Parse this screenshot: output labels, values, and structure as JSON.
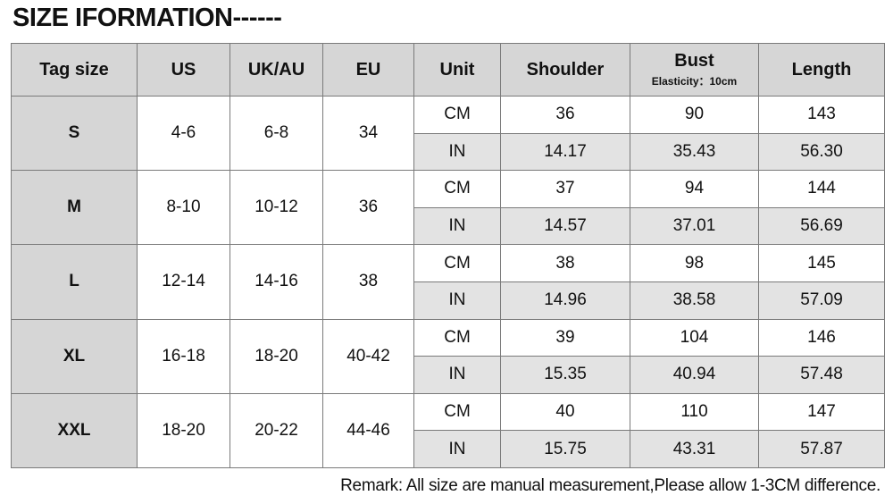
{
  "title": "SIZE IFORMATION------",
  "table": {
    "header": [
      "Tag size",
      "US",
      "UK/AU",
      "EU",
      "Unit",
      "Shoulder",
      "Bust",
      "Length"
    ],
    "header_note": "Elasticity：10cm",
    "rows": [
      {
        "tag": "S",
        "us": "4-6",
        "uk": "6-8",
        "eu": "34",
        "measurements": [
          [
            "CM",
            "36",
            "90",
            "143"
          ],
          [
            "IN",
            "14.17",
            "35.43",
            "56.30"
          ]
        ]
      },
      {
        "tag": "M",
        "us": "8-10",
        "uk": "10-12",
        "eu": "36",
        "measurements": [
          [
            "CM",
            "37",
            "94",
            "144"
          ],
          [
            "IN",
            "14.57",
            "37.01",
            "56.69"
          ]
        ]
      },
      {
        "tag": "L",
        "us": "12-14",
        "uk": "14-16",
        "eu": "38",
        "measurements": [
          [
            "CM",
            "38",
            "98",
            "145"
          ],
          [
            "IN",
            "14.96",
            "38.58",
            "57.09"
          ]
        ]
      },
      {
        "tag": "XL",
        "us": "16-18",
        "uk": "18-20",
        "eu": "40-42",
        "measurements": [
          [
            "CM",
            "39",
            "104",
            "146"
          ],
          [
            "IN",
            "15.35",
            "40.94",
            "57.48"
          ]
        ]
      },
      {
        "tag": "XXL",
        "us": "18-20",
        "uk": "20-22",
        "eu": "44-46",
        "measurements": [
          [
            "CM",
            "40",
            "110",
            "147"
          ],
          [
            "IN",
            "15.75",
            "43.31",
            "57.87"
          ]
        ]
      }
    ]
  },
  "remark": "Remark: All size are manual measurement,Please allow 1-3CM difference."
}
